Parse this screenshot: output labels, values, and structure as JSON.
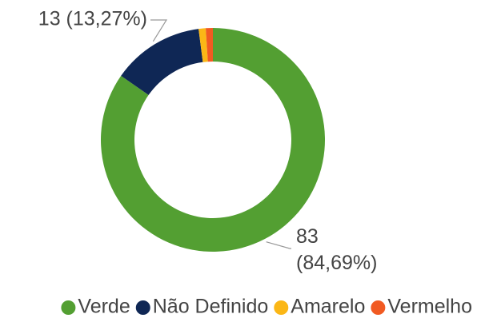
{
  "chart_data": {
    "type": "donut",
    "categories": [
      "Verde",
      "Não Definido",
      "Amarelo",
      "Vermelho"
    ],
    "values": [
      83,
      13,
      1,
      1
    ],
    "value_labels": [
      "83 (84,69%)",
      "13 (13,27%)",
      null,
      null
    ],
    "colors": [
      "#539f32",
      "#0f2755",
      "#fbb716",
      "#f15a22"
    ],
    "legend": "bottom"
  }
}
